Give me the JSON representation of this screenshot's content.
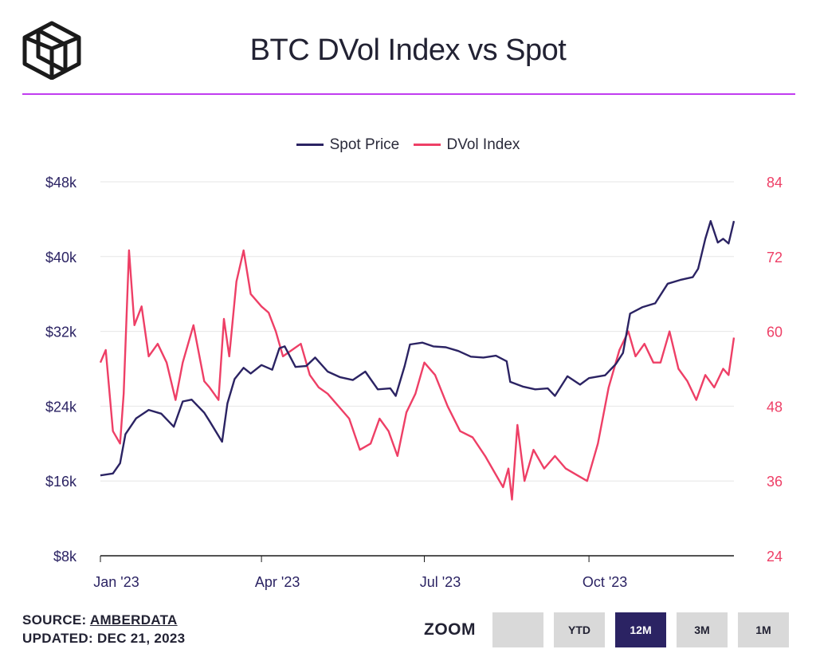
{
  "header": {
    "title": "BTC DVol Index vs Spot",
    "accent_color": "#c13cf0"
  },
  "legend": [
    {
      "label": "Spot Price",
      "color": "#2b2363"
    },
    {
      "label": "DVol Index",
      "color": "#ee3f66"
    }
  ],
  "footer": {
    "source_prefix": "SOURCE: ",
    "source_name": "AMBERDATA",
    "updated": "UPDATED: DEC 21, 2023"
  },
  "zoom": {
    "label": "ZOOM",
    "buttons": [
      {
        "label": "",
        "active": false
      },
      {
        "label": "YTD",
        "active": false
      },
      {
        "label": "12M",
        "active": true
      },
      {
        "label": "3M",
        "active": false
      },
      {
        "label": "1M",
        "active": false
      }
    ]
  },
  "chart_data": {
    "type": "line",
    "title": "BTC DVol Index vs Spot",
    "x_range": [
      "2023-01-01",
      "2023-12-21"
    ],
    "x_ticks": [
      {
        "label": "Jan '23",
        "date": "2023-01-01"
      },
      {
        "label": "Apr '23",
        "date": "2023-04-01"
      },
      {
        "label": "Jul '23",
        "date": "2023-07-01"
      },
      {
        "label": "Oct '23",
        "date": "2023-10-01"
      }
    ],
    "y_left": {
      "label": "Spot Price",
      "min": 8000,
      "max": 48000,
      "ticks": [
        "$8k",
        "$16k",
        "$24k",
        "$32k",
        "$40k",
        "$48k"
      ],
      "tick_values": [
        8000,
        16000,
        24000,
        32000,
        40000,
        48000
      ]
    },
    "y_right": {
      "label": "DVol Index",
      "min": 24,
      "max": 84,
      "ticks": [
        "24",
        "36",
        "48",
        "60",
        "72",
        "84"
      ],
      "tick_values": [
        24,
        36,
        48,
        60,
        72,
        84
      ]
    },
    "grid": true,
    "legend_position": "top-center",
    "series": [
      {
        "name": "Spot Price",
        "axis": "left",
        "color": "#2b2363",
        "x": [
          "2023-01-01",
          "2023-01-08",
          "2023-01-12",
          "2023-01-15",
          "2023-01-21",
          "2023-01-28",
          "2023-02-04",
          "2023-02-11",
          "2023-02-16",
          "2023-02-21",
          "2023-02-28",
          "2023-03-03",
          "2023-03-10",
          "2023-03-13",
          "2023-03-17",
          "2023-03-22",
          "2023-03-26",
          "2023-04-01",
          "2023-04-07",
          "2023-04-11",
          "2023-04-14",
          "2023-04-20",
          "2023-04-26",
          "2023-05-01",
          "2023-05-08",
          "2023-05-15",
          "2023-05-22",
          "2023-05-29",
          "2023-06-05",
          "2023-06-12",
          "2023-06-15",
          "2023-06-20",
          "2023-06-23",
          "2023-06-30",
          "2023-07-06",
          "2023-07-13",
          "2023-07-20",
          "2023-07-27",
          "2023-08-03",
          "2023-08-10",
          "2023-08-16",
          "2023-08-18",
          "2023-08-25",
          "2023-09-01",
          "2023-09-08",
          "2023-09-12",
          "2023-09-19",
          "2023-09-26",
          "2023-10-01",
          "2023-10-10",
          "2023-10-16",
          "2023-10-20",
          "2023-10-24",
          "2023-10-31",
          "2023-11-07",
          "2023-11-14",
          "2023-11-21",
          "2023-11-28",
          "2023-12-01",
          "2023-12-05",
          "2023-12-08",
          "2023-12-12",
          "2023-12-15",
          "2023-12-18",
          "2023-12-21"
        ],
        "values": [
          16600,
          16800,
          17900,
          21000,
          22700,
          23600,
          23200,
          21800,
          24500,
          24700,
          23300,
          22400,
          20200,
          24300,
          26900,
          28100,
          27500,
          28400,
          27900,
          30200,
          30400,
          28200,
          28300,
          29200,
          27700,
          27100,
          26800,
          27700,
          25800,
          25900,
          25100,
          28300,
          30600,
          30800,
          30400,
          30300,
          29900,
          29300,
          29200,
          29400,
          28800,
          26600,
          26100,
          25800,
          25900,
          25100,
          27200,
          26300,
          27000,
          27300,
          28500,
          29700,
          33900,
          34600,
          35000,
          37100,
          37500,
          37800,
          38700,
          41900,
          43800,
          41500,
          41900,
          41400,
          43800
        ]
      },
      {
        "name": "DVol Index",
        "axis": "right",
        "color": "#ee3f66",
        "x": [
          "2023-01-01",
          "2023-01-04",
          "2023-01-08",
          "2023-01-12",
          "2023-01-14",
          "2023-01-17",
          "2023-01-20",
          "2023-01-24",
          "2023-01-28",
          "2023-02-02",
          "2023-02-07",
          "2023-02-12",
          "2023-02-16",
          "2023-02-22",
          "2023-02-28",
          "2023-03-03",
          "2023-03-08",
          "2023-03-11",
          "2023-03-14",
          "2023-03-18",
          "2023-03-22",
          "2023-03-26",
          "2023-04-01",
          "2023-04-05",
          "2023-04-09",
          "2023-04-13",
          "2023-04-18",
          "2023-04-23",
          "2023-04-28",
          "2023-05-03",
          "2023-05-08",
          "2023-05-14",
          "2023-05-20",
          "2023-05-26",
          "2023-06-01",
          "2023-06-06",
          "2023-06-11",
          "2023-06-16",
          "2023-06-21",
          "2023-06-26",
          "2023-07-01",
          "2023-07-07",
          "2023-07-14",
          "2023-07-21",
          "2023-07-28",
          "2023-08-04",
          "2023-08-10",
          "2023-08-14",
          "2023-08-17",
          "2023-08-19",
          "2023-08-22",
          "2023-08-26",
          "2023-08-31",
          "2023-09-06",
          "2023-09-12",
          "2023-09-18",
          "2023-09-24",
          "2023-09-30",
          "2023-10-06",
          "2023-10-12",
          "2023-10-18",
          "2023-10-23",
          "2023-10-27",
          "2023-11-01",
          "2023-11-06",
          "2023-11-10",
          "2023-11-15",
          "2023-11-20",
          "2023-11-25",
          "2023-11-30",
          "2023-12-05",
          "2023-12-10",
          "2023-12-15",
          "2023-12-18",
          "2023-12-21"
        ],
        "values": [
          55,
          57,
          44,
          42,
          50,
          73,
          61,
          64,
          56,
          58,
          55,
          49,
          55,
          61,
          52,
          51,
          49,
          62,
          56,
          68,
          73,
          66,
          64,
          63,
          60,
          56,
          57,
          58,
          53,
          51,
          50,
          48,
          46,
          41,
          42,
          46,
          44,
          40,
          47,
          50,
          55,
          53,
          48,
          44,
          43,
          40,
          37,
          35,
          38,
          33,
          45,
          36,
          41,
          38,
          40,
          38,
          37,
          36,
          42,
          51,
          57,
          60,
          56,
          58,
          55,
          55,
          60,
          54,
          52,
          49,
          53,
          51,
          54,
          53,
          59
        ]
      }
    ]
  }
}
